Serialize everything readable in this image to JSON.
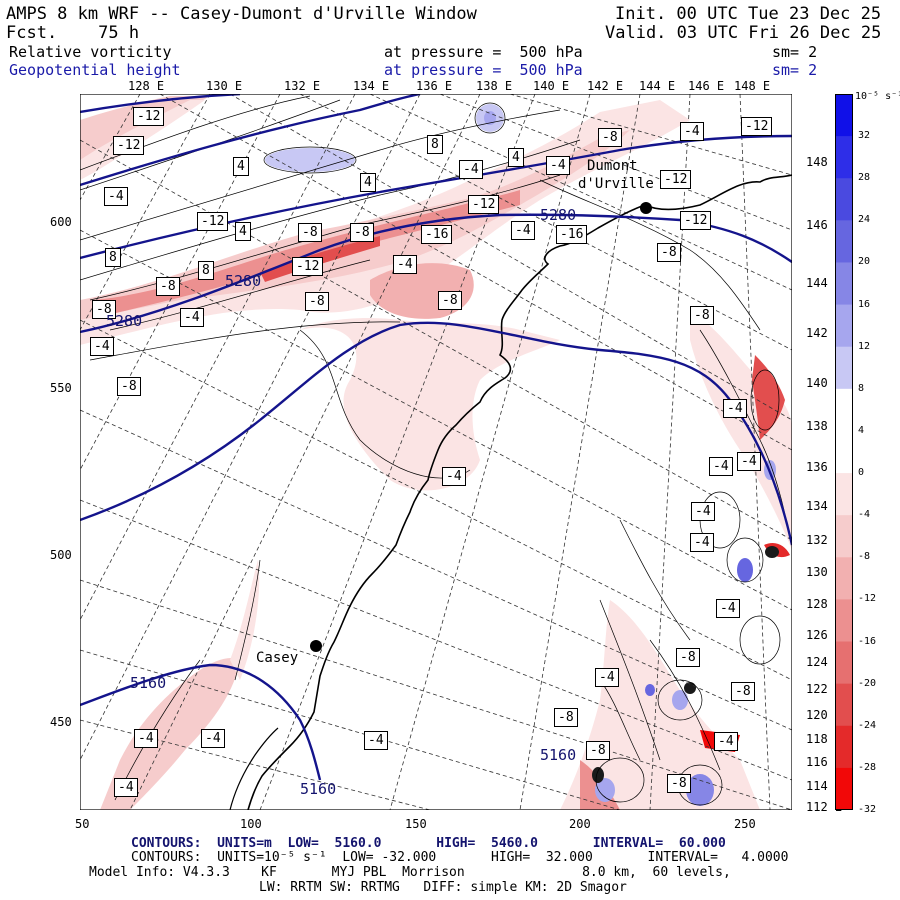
{
  "header": {
    "title": "AMPS 8 km WRF -- Casey-Dumont d'Urville Window",
    "fcst": "Fcst.    75 h",
    "init": "Init. 00 UTC Tue 23 Dec 25",
    "valid": "Valid. 03 UTC Fri 26 Dec 25",
    "field1": "Relative vorticity",
    "field1_level": "at pressure =  500 hPa",
    "field1_sm": "sm= 2",
    "field2": "Geopotential height",
    "field2_level": "at pressure =  500 hPa",
    "field2_sm": "sm= 2"
  },
  "map": {
    "lon_labels": [
      "128 E",
      "130 E",
      "132 E",
      "134 E",
      "136 E",
      "138 E",
      "140 E",
      "142 E",
      "144 E",
      "146 E",
      "148 E"
    ],
    "lat_labels": [
      "148 E",
      "146 E",
      "144 E",
      "142 E",
      "140 E",
      "138 E",
      "136 E",
      "134 E",
      "132 E",
      "130 E",
      "128 E",
      "126 E",
      "124 E",
      "122 E",
      "120 E",
      "118 E",
      "116 E",
      "114 E",
      "112 E"
    ],
    "x_ticks": [
      "50",
      "100",
      "150",
      "200",
      "250"
    ],
    "y_ticks": [
      "600",
      "550",
      "500",
      "450"
    ],
    "stations": [
      {
        "name": "Casey"
      },
      {
        "name": "Dumont"
      },
      {
        "name": "d'Urville"
      }
    ],
    "height_labels": [
      "5280",
      "5280",
      "5280",
      "5160",
      "5160",
      "5160"
    ],
    "vort_labels": [
      "-12",
      "-12",
      "-4",
      "4",
      "8",
      "4",
      "-4",
      "4",
      "-4",
      "-8",
      "-4",
      "-12",
      "-12",
      "-16",
      "-8",
      "-8",
      "-12",
      "-4",
      "-8",
      "-4",
      "-8",
      "-8",
      "8",
      "4",
      "8",
      "-12",
      "-12",
      "-16",
      "-8",
      "-12",
      "-8",
      "-8",
      "-4",
      "-4",
      "-8",
      "-4",
      "-4",
      "-4",
      "-4",
      "-4",
      "-4",
      "-4",
      "-8",
      "-4",
      "-8",
      "-4",
      "-4",
      "-8",
      "-4",
      "-4",
      "-8",
      "-4",
      "-8",
      "-12",
      "-8",
      "-4"
    ]
  },
  "colorbar": {
    "unit": "10⁻⁵ s⁻¹",
    "labels": [
      "32",
      "28",
      "24",
      "20",
      "16",
      "12",
      "8",
      "4",
      "0",
      "-4",
      "-8",
      "-12",
      "-16",
      "-20",
      "-24",
      "-28",
      "-32"
    ],
    "colors": [
      "#1010e8",
      "#2e2ee8",
      "#4a4ae0",
      "#6666e0",
      "#8686e6",
      "#a6a6ee",
      "#c8c8f4",
      "#ffffff",
      "#ffffff",
      "#fbe4e4",
      "#f6cccc",
      "#f2b0b0",
      "#ec9090",
      "#e67070",
      "#e24e4e",
      "#e42a2a",
      "#f20808"
    ]
  },
  "footer": {
    "line1": "CONTOURS:  UNITS=m  LOW=  5160.0       HIGH=  5460.0       INTERVAL=  60.000",
    "line2": "CONTOURS:  UNITS=10⁻⁵ s⁻¹  LOW= -32.000       HIGH=  32.000       INTERVAL=   4.0000",
    "line3": "Model Info: V4.3.3    KF       MYJ PBL  Morrison               8.0 km,  60 levels,",
    "line4": "LW: RRTM SW: RRTMG   DIFF: simple KM: 2D Smagor"
  },
  "colors": {
    "height": "#14148c",
    "vort_neg": "#f2b0b0",
    "vort_pos": "#c8c8f4"
  }
}
